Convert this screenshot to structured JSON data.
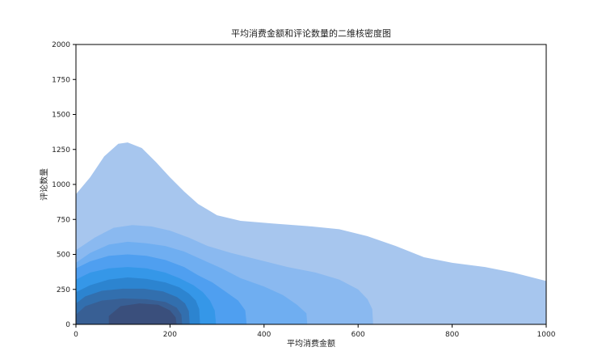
{
  "chart_data": {
    "type": "kde_contour",
    "title": "平均消费金额和评论数量的二维核密度图",
    "xlabel": "平均消费金额",
    "ylabel": "评论数量",
    "xlim": [
      0,
      1000
    ],
    "ylim": [
      0,
      2000
    ],
    "xticks": [
      0,
      200,
      400,
      600,
      800,
      1000
    ],
    "yticks": [
      0,
      250,
      500,
      750,
      1000,
      1250,
      1500,
      1750,
      2000
    ],
    "fill_color_ramp": [
      "#a7c6ee",
      "#8ab9f0",
      "#6faef1",
      "#4f9ff0",
      "#3597e8",
      "#2c84d0",
      "#326fae",
      "#385f94",
      "#3a4f7c"
    ],
    "levels": [
      [
        [
          0,
          930
        ],
        [
          30,
          1050
        ],
        [
          60,
          1200
        ],
        [
          90,
          1290
        ],
        [
          110,
          1300
        ],
        [
          140,
          1260
        ],
        [
          170,
          1160
        ],
        [
          200,
          1050
        ],
        [
          230,
          950
        ],
        [
          260,
          860
        ],
        [
          300,
          780
        ],
        [
          350,
          740
        ],
        [
          420,
          720
        ],
        [
          500,
          700
        ],
        [
          560,
          680
        ],
        [
          620,
          630
        ],
        [
          680,
          560
        ],
        [
          740,
          480
        ],
        [
          800,
          440
        ],
        [
          870,
          410
        ],
        [
          930,
          370
        ],
        [
          1000,
          310
        ],
        [
          1000,
          0
        ],
        [
          0,
          0
        ]
      ],
      [
        [
          0,
          530
        ],
        [
          40,
          620
        ],
        [
          80,
          690
        ],
        [
          120,
          710
        ],
        [
          160,
          700
        ],
        [
          200,
          670
        ],
        [
          240,
          620
        ],
        [
          280,
          560
        ],
        [
          330,
          510
        ],
        [
          390,
          460
        ],
        [
          450,
          410
        ],
        [
          510,
          370
        ],
        [
          560,
          320
        ],
        [
          600,
          250
        ],
        [
          620,
          180
        ],
        [
          630,
          110
        ],
        [
          632,
          0
        ],
        [
          0,
          0
        ]
      ],
      [
        [
          0,
          440
        ],
        [
          30,
          510
        ],
        [
          70,
          570
        ],
        [
          110,
          590
        ],
        [
          150,
          580
        ],
        [
          190,
          560
        ],
        [
          230,
          520
        ],
        [
          270,
          460
        ],
        [
          310,
          400
        ],
        [
          350,
          330
        ],
        [
          400,
          270
        ],
        [
          440,
          210
        ],
        [
          470,
          140
        ],
        [
          490,
          80
        ],
        [
          492,
          0
        ],
        [
          0,
          0
        ]
      ],
      [
        [
          0,
          400
        ],
        [
          30,
          450
        ],
        [
          70,
          490
        ],
        [
          110,
          500
        ],
        [
          150,
          490
        ],
        [
          190,
          460
        ],
        [
          230,
          410
        ],
        [
          260,
          350
        ],
        [
          290,
          300
        ],
        [
          320,
          230
        ],
        [
          345,
          170
        ],
        [
          360,
          100
        ],
        [
          363,
          0
        ],
        [
          0,
          0
        ]
      ],
      [
        [
          0,
          320
        ],
        [
          30,
          370
        ],
        [
          70,
          400
        ],
        [
          110,
          410
        ],
        [
          150,
          400
        ],
        [
          190,
          370
        ],
        [
          220,
          330
        ],
        [
          250,
          280
        ],
        [
          270,
          230
        ],
        [
          285,
          170
        ],
        [
          295,
          100
        ],
        [
          298,
          0
        ],
        [
          0,
          0
        ]
      ],
      [
        [
          0,
          230
        ],
        [
          30,
          280
        ],
        [
          70,
          320
        ],
        [
          110,
          335
        ],
        [
          150,
          325
        ],
        [
          190,
          300
        ],
        [
          220,
          265
        ],
        [
          240,
          220
        ],
        [
          255,
          170
        ],
        [
          262,
          110
        ],
        [
          264,
          0
        ],
        [
          0,
          0
        ]
      ],
      [
        [
          0,
          150
        ],
        [
          20,
          200
        ],
        [
          55,
          240
        ],
        [
          100,
          255
        ],
        [
          145,
          255
        ],
        [
          185,
          235
        ],
        [
          215,
          195
        ],
        [
          232,
          150
        ],
        [
          240,
          95
        ],
        [
          242,
          0
        ],
        [
          0,
          0
        ]
      ],
      [
        [
          0,
          70
        ],
        [
          20,
          130
        ],
        [
          55,
          170
        ],
        [
          100,
          185
        ],
        [
          150,
          180
        ],
        [
          190,
          160
        ],
        [
          214,
          120
        ],
        [
          224,
          70
        ],
        [
          226,
          0
        ],
        [
          0,
          0
        ]
      ],
      [
        [
          70,
          0
        ],
        [
          70,
          60
        ],
        [
          95,
          130
        ],
        [
          135,
          150
        ],
        [
          175,
          140
        ],
        [
          200,
          100
        ],
        [
          212,
          50
        ],
        [
          214,
          0
        ]
      ]
    ]
  }
}
